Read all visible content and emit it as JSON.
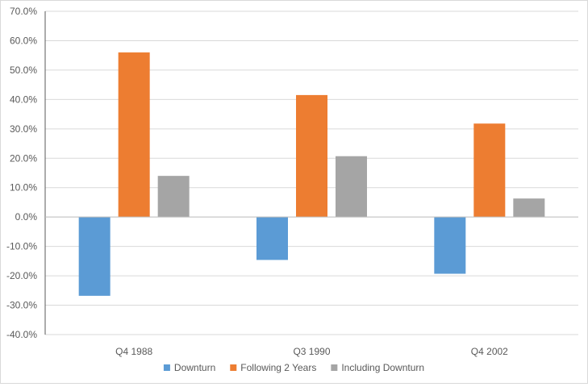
{
  "chart_data": {
    "type": "bar",
    "categories": [
      "Q4 1988",
      "Q3 1990",
      "Q4 2002"
    ],
    "series": [
      {
        "name": "Downturn",
        "values": [
          -26.8,
          -14.6,
          -19.3
        ],
        "color": "#5b9bd5"
      },
      {
        "name": "Following  2 Years",
        "values": [
          56.0,
          41.5,
          31.8
        ],
        "color": "#ed7d31"
      },
      {
        "name": "Including Downturn",
        "values": [
          14.0,
          20.7,
          6.3
        ],
        "color": "#a5a5a5"
      }
    ],
    "ylim": [
      -40,
      70
    ],
    "yticks": [
      -40,
      -30,
      -20,
      -10,
      0,
      10,
      20,
      30,
      40,
      50,
      60,
      70
    ],
    "ytick_labels": [
      "-40.0%",
      "-30.0%",
      "-20.0%",
      "-10.0%",
      "0.0%",
      "10.0%",
      "20.0%",
      "30.0%",
      "40.0%",
      "50.0%",
      "60.0%",
      "70.0%"
    ],
    "grid": true,
    "legend_position": "bottom",
    "title": "",
    "xlabel": "",
    "ylabel": ""
  }
}
